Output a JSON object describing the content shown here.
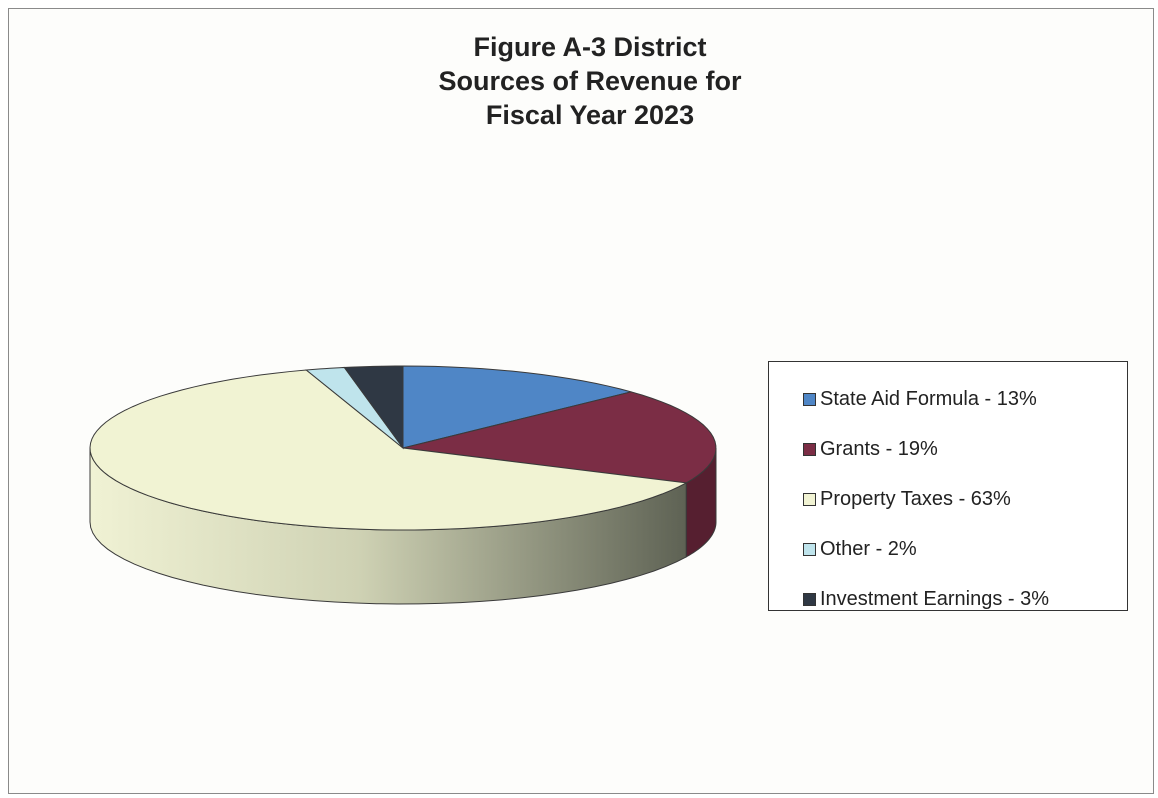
{
  "chart_data": {
    "type": "pie",
    "title": "Figure A-3 District Sources of Revenue for Fiscal Year 2023",
    "title_lines": [
      "Figure A-3 District",
      "Sources of Revenue for",
      "Fiscal Year 2023"
    ],
    "three_d": true,
    "legend_position": "right",
    "slices": [
      {
        "label": "State Aid Formula  - 13%",
        "value": 13,
        "color": "#4f86c6"
      },
      {
        "label": "Grants - 19%",
        "value": 19,
        "color": "#7b2d45"
      },
      {
        "label": "Property Taxes - 63%",
        "value": 63,
        "color": "#f1f3d3"
      },
      {
        "label": "Other - 2%",
        "value": 2,
        "color": "#bfe4ec"
      },
      {
        "label": "Investment Earnings - 3%",
        "value": 3,
        "color": "#2f3844"
      }
    ]
  }
}
